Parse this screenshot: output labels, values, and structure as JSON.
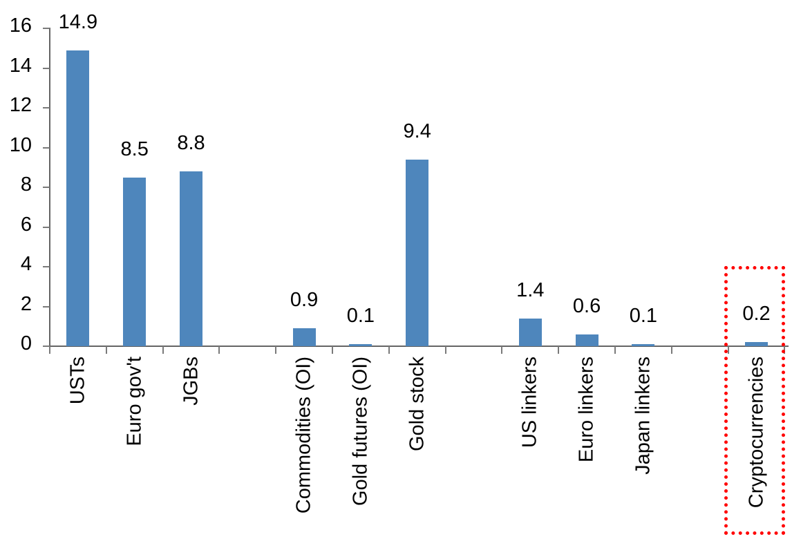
{
  "chart_data": {
    "type": "bar",
    "title": "",
    "xlabel": "",
    "ylabel": "",
    "categories": [
      "USTs",
      "Euro gov't",
      "JGBs",
      "Commodities (OI)",
      "Gold futures (OI)",
      "Gold stock",
      "US linkers",
      "Euro linkers",
      "Japan linkers",
      "Cryptocurrencies"
    ],
    "values": [
      14.9,
      8.5,
      8.8,
      0.9,
      0.1,
      9.4,
      1.4,
      0.6,
      0.1,
      0.2
    ],
    "data_labels": [
      "14.9",
      "8.5",
      "8.8",
      "0.9",
      "0.1",
      "9.4",
      "1.4",
      "0.6",
      "0.1",
      "0.2"
    ],
    "slot_layout": [
      "USTs",
      "Euro gov't",
      "JGBs",
      "",
      "Commodities (OI)",
      "Gold futures (OI)",
      "Gold stock",
      "",
      "US linkers",
      "Euro linkers",
      "Japan linkers",
      "",
      "Cryptocurrencies"
    ],
    "ylim": [
      0,
      16
    ],
    "yticks": [
      0,
      2,
      4,
      6,
      8,
      10,
      12,
      14,
      16
    ],
    "grid": false,
    "legend_position": "none",
    "x_labels_rotation_degrees": -90,
    "highlighted_category": "Cryptocurrencies",
    "colors": {
      "bar": "#4E86BC",
      "axis": "#646464",
      "text": "#000000",
      "highlight_box": "#FF0000"
    }
  }
}
